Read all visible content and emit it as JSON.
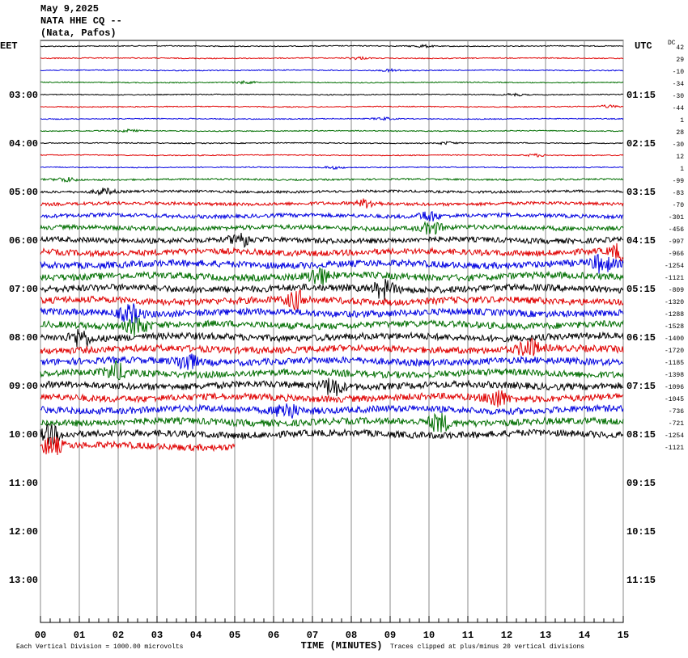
{
  "chart_data": {
    "type": "helicorder",
    "title_lines": [
      "May 9,2025",
      "NATA HHE CQ --",
      "(Nata, Pafos)"
    ],
    "left_axis_label": "EET",
    "right_axis_label": "UTC",
    "dc_header": "DC",
    "left_labels": [
      "03:00",
      "04:00",
      "05:00",
      "06:00",
      "07:00",
      "08:00",
      "09:00",
      "10:00",
      "11:00",
      "12:00",
      "13:00"
    ],
    "right_labels": [
      "01:15",
      "02:15",
      "03:15",
      "04:15",
      "05:15",
      "06:15",
      "07:15",
      "08:15",
      "09:15",
      "10:15",
      "11:15"
    ],
    "dc_offsets": [
      42,
      29,
      -10,
      -34,
      -30,
      -44,
      1,
      28,
      -30,
      12,
      1,
      -99,
      -83,
      -70,
      -301,
      -456,
      -997,
      -966,
      -1254,
      -1121,
      -809,
      -1320,
      -1288,
      -1528,
      -1400,
      -1720,
      -1185,
      -1398,
      -1096,
      -1045,
      -736,
      -721,
      -1254,
      -1121
    ],
    "trace_colors": [
      "#000000",
      "#e00000",
      "#0000e0",
      "#006e00"
    ],
    "last_trace_end": 5,
    "xlim": [
      0,
      15
    ],
    "xticks": [
      {
        "value": 0,
        "label": "00"
      },
      {
        "value": 1,
        "label": "01"
      },
      {
        "value": 2,
        "label": "02"
      },
      {
        "value": 3,
        "label": "03"
      },
      {
        "value": 4,
        "label": "04"
      },
      {
        "value": 5,
        "label": "05"
      },
      {
        "value": 6,
        "label": "06"
      },
      {
        "value": 7,
        "label": "07"
      },
      {
        "value": 8,
        "label": "08"
      },
      {
        "value": 9,
        "label": "09"
      },
      10,
      11,
      12,
      13,
      14,
      15
    ],
    "xlabel": "TIME (MINUTES)",
    "scale_note": "Each Vertical Division = 1000.00 microvolts",
    "clip_note": "Traces clipped at plus/minus 20 vertical divisions",
    "grid": true
  }
}
